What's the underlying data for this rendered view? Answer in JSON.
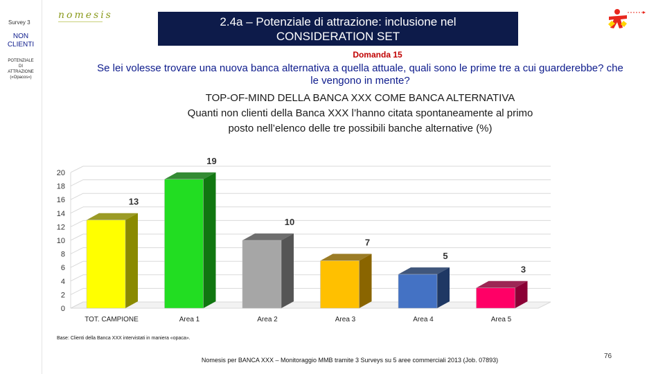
{
  "sidebar": {
    "survey": "Survey 3",
    "segment_line1": "NON",
    "segment_line2": "CLIENTI",
    "section_line1": "POTENZIALE",
    "section_line2": "DI",
    "section_line3": "ATTRAZIONE",
    "section_line4": "(«Opacos»)"
  },
  "header": {
    "logo": "nomesis",
    "title_line1": "2.4a – Potenziale di attrazione: inclusione nel",
    "title_line2": "CONSIDERATION SET"
  },
  "question": {
    "number": "Domanda 15",
    "text": "Se lei volesse trovare una nuova banca alternativa a quella attuale, quali sono le prime tre a cui guarderebbe? che le vengono in mente?"
  },
  "chart_title": {
    "line1": "TOP-OF-MIND DELLA BANCA XXX COME BANCA ALTERNATIVA",
    "line2": "Quanti non clienti della Banca XXX l’hanno citata spontaneamente al primo",
    "line3": "posto nell’elenco delle tre possibili banche alternative (%)"
  },
  "chart_data": {
    "type": "bar",
    "categories": [
      "TOT. CAMPIONE",
      "Area 1",
      "Area 2",
      "Area 3",
      "Area 4",
      "Area 5"
    ],
    "values": [
      13,
      19,
      10,
      7,
      5,
      3
    ],
    "ylim": [
      0,
      20
    ],
    "yticks": [
      0,
      2,
      4,
      6,
      8,
      10,
      12,
      14,
      16,
      18,
      20
    ],
    "grid": true,
    "legend": "none",
    "colors": [
      "#ffff00",
      "#22dd22",
      "#a6a6a6",
      "#ffc000",
      "#4472c4",
      "#ff0066"
    ],
    "side_colors": [
      "#8a8a00",
      "#117711",
      "#555555",
      "#8a6500",
      "#1f3864",
      "#8b0036"
    ]
  },
  "footer": {
    "base": "Base: Clienti della Banca XXX intervistati in maniera «opaca».",
    "source": "Nomesis per BANCA XXX – Monitoraggio MMB tramite 3 Surveys su 5 aree commerciali 2013 (Job. 07893)",
    "page": "76"
  }
}
